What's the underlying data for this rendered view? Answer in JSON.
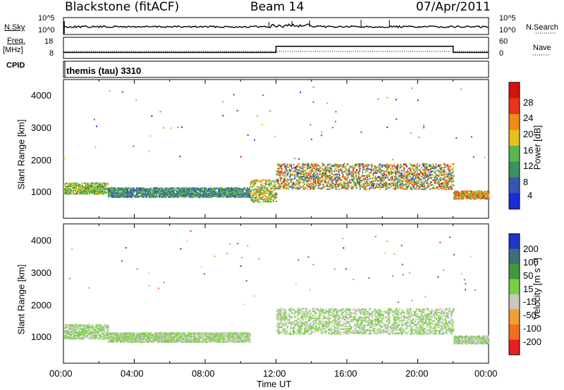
{
  "header": {
    "radar_name": "Blackstone (fitACF)",
    "beam": "Beam 14",
    "date": "07/Apr/2011"
  },
  "left_labels": {
    "nsky": "N.Sky",
    "freq_label": "Freq.",
    "freq_unit": "[MHz]",
    "cpid": "CPID"
  },
  "right_labels": {
    "nsearch": "N.Search",
    "nave": "Nave"
  },
  "noise_panel": {
    "left_top": "10^5",
    "left_bot": "10^0",
    "right_top": "10^5",
    "right_bot": "10^0"
  },
  "freq_panel": {
    "left_top": "18",
    "left_bot": "8",
    "right_top": "60",
    "right_bot": "0"
  },
  "cpid_panel": {
    "text": "themis (tau) 3310"
  },
  "power_panel": {
    "ylabel": "Slant Range [km]",
    "yticks": [
      "4000",
      "3000",
      "2000",
      "1000"
    ],
    "colorbar_label": "Power [dB]",
    "colorbar_ticks": [
      "28",
      "24",
      "20",
      "16",
      "12",
      "8",
      "4"
    ],
    "colors": [
      "#1a2bd9",
      "#3a55b0",
      "#3f8f60",
      "#58b84a",
      "#e6c21a",
      "#f08a1a",
      "#e8331a",
      "#d81010"
    ]
  },
  "velocity_panel": {
    "ylabel": "Slant Range [km]",
    "yticks": [
      "4000",
      "3000",
      "2000",
      "1000"
    ],
    "colorbar_label": "Velocity [m s⁻¹]",
    "colorbar_ticks": [
      "200",
      "100",
      "50",
      "15",
      "-15",
      "-50",
      "-100",
      "-200"
    ],
    "colors": [
      "#2233c8",
      "#3f6e7a",
      "#3f9b3a",
      "#78d040",
      "#c8c8c0",
      "#f0a030",
      "#f07020",
      "#e82020"
    ]
  },
  "xaxis": {
    "ticks": [
      "00:00",
      "04:00",
      "08:00",
      "12:00",
      "16:00",
      "20:00",
      "00:00"
    ],
    "label": "Time UT"
  },
  "chart_data": {
    "type": "heatmap",
    "x_range_hours": [
      0,
      24
    ],
    "y_range_km": [
      180,
      4500
    ],
    "freq_mhz_series": [
      {
        "x": [
          0,
          12,
          12,
          22,
          22,
          24
        ],
        "y": [
          10.5,
          10.5,
          14.5,
          14.5,
          10.5,
          10.5
        ]
      }
    ],
    "power_bands": [
      {
        "t": [
          0,
          2.5
        ],
        "range_km": [
          950,
          1300
        ],
        "power_db": [
          8,
          20
        ]
      },
      {
        "t": [
          2.5,
          10.5
        ],
        "range_km": [
          850,
          1150
        ],
        "power_db": [
          4,
          16
        ]
      },
      {
        "t": [
          10.5,
          12
        ],
        "range_km": [
          700,
          1400
        ],
        "power_db": [
          8,
          24
        ]
      },
      {
        "t": [
          12,
          22
        ],
        "range_km": [
          1100,
          1900
        ],
        "power_db": [
          4,
          28
        ]
      },
      {
        "t": [
          22,
          24
        ],
        "range_km": [
          800,
          1050
        ],
        "power_db": [
          12,
          28
        ]
      }
    ],
    "velocity_bands": [
      {
        "t": [
          0,
          2.5
        ],
        "range_km": [
          950,
          1400
        ],
        "velocity_ms": [
          -15,
          15
        ]
      },
      {
        "t": [
          2.5,
          10.5
        ],
        "range_km": [
          850,
          1150
        ],
        "velocity_ms": [
          -15,
          15
        ]
      },
      {
        "t": [
          12,
          22
        ],
        "range_km": [
          1100,
          1900
        ],
        "velocity_ms": [
          -15,
          15
        ]
      },
      {
        "t": [
          22,
          24
        ],
        "range_km": [
          800,
          1050
        ],
        "velocity_ms": [
          -15,
          15
        ]
      }
    ]
  }
}
